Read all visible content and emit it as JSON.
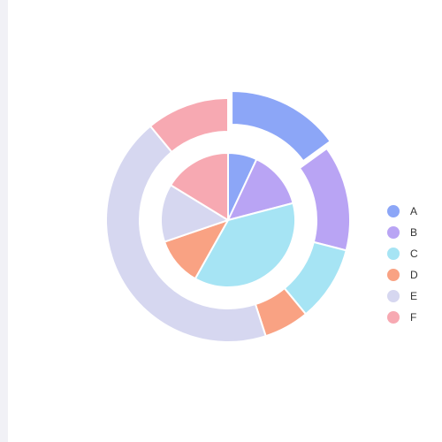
{
  "chart_data": {
    "type": "pie",
    "subtype": "nested-donut",
    "categories": [
      "A",
      "B",
      "C",
      "D",
      "E",
      "F"
    ],
    "colors": [
      "#8ca6f7",
      "#b9a4f4",
      "#a6e4f4",
      "#f9a283",
      "#d6d7f0",
      "#f7a9b2"
    ],
    "series": [
      {
        "ring": "inner",
        "values": [
          6,
          12,
          32,
          10,
          12,
          14
        ]
      },
      {
        "ring": "outer",
        "values": [
          15,
          14,
          10,
          6,
          44,
          11
        ],
        "highlighted": "A"
      }
    ],
    "legend_position": "right"
  }
}
